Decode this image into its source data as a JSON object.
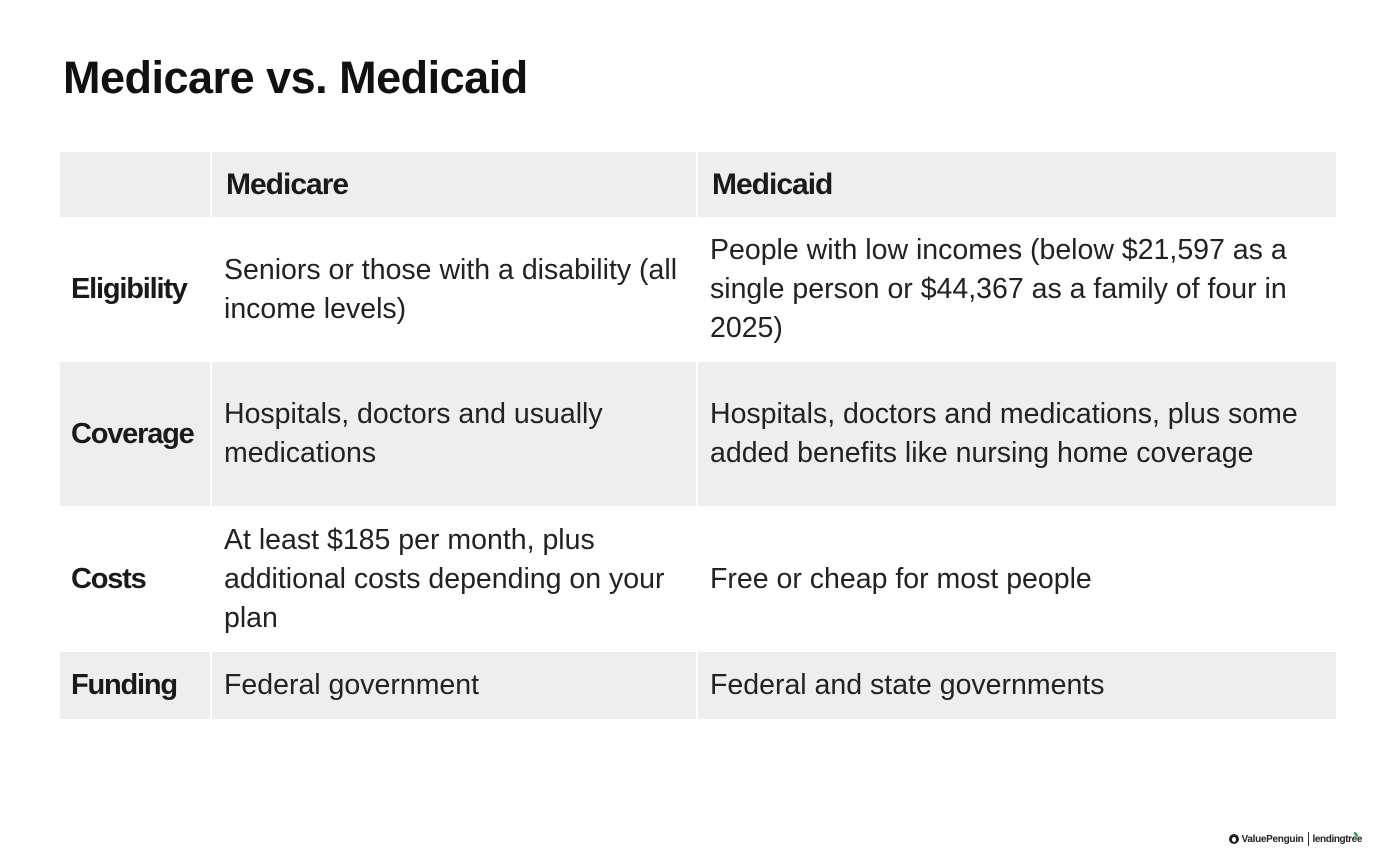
{
  "title": "Medicare vs. Medicaid",
  "table": {
    "headers": [
      "",
      "Medicare",
      "Medicaid"
    ],
    "rows": [
      {
        "label": "Eligibility",
        "medicare": "Seniors or those with a disability (all income levels)",
        "medicaid": "People with low incomes (below $21,597 as a single person or $44,367 as a family of four in 2025)"
      },
      {
        "label": "Coverage",
        "medicare": "Hospitals, doctors and usually medications",
        "medicaid": "Hospitals, doctors and medications, plus some added benefits like nursing home coverage"
      },
      {
        "label": "Costs",
        "medicare": "At least $185 per month, plus additional costs depending on your plan",
        "medicaid": "Free or cheap for most people"
      },
      {
        "label": "Funding",
        "medicare": "Federal government",
        "medicaid": "Federal and state governments"
      }
    ]
  },
  "branding": {
    "valuepenguin": "ValuePenguin",
    "lendingtree": "lendingtree",
    "icon": "penguin-icon",
    "accent_color": "#2f9b57"
  },
  "colors": {
    "header_bg": "#eeeeee",
    "shaded_row_bg": "#eeeeee",
    "plain_row_bg": "#ffffff",
    "text": "#222222"
  }
}
